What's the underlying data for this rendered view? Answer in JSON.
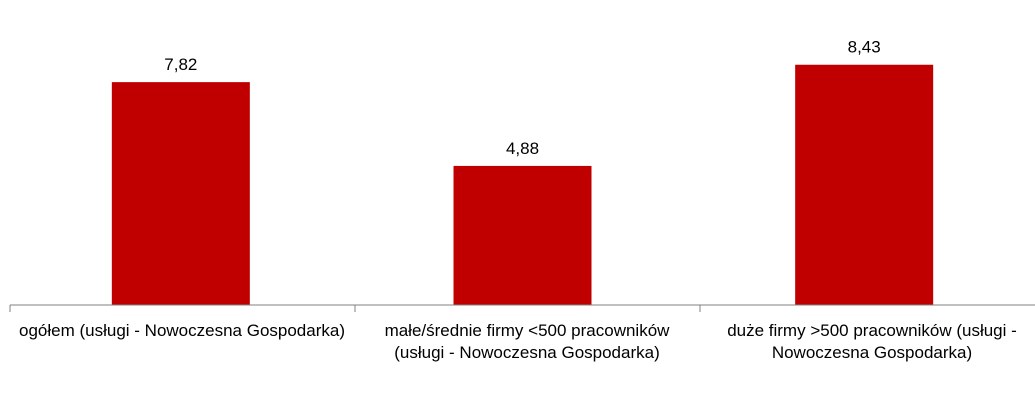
{
  "chart_data": {
    "type": "bar",
    "categories": [
      "ogółem (usługi - Nowoczesna Gospodarka)",
      "małe/średnie firmy <500 pracowników (usługi - Nowoczesna Gospodarka)",
      "duże firmy >500 pracowników (usługi - Nowoczesna Gospodarka)"
    ],
    "values": [
      7.82,
      4.88,
      8.43
    ],
    "data_labels": [
      "7,82",
      "4,88",
      "8,43"
    ],
    "ylim": [
      0,
      10
    ],
    "bar_color": "#c00000",
    "axis_color": "#808080",
    "grid": false,
    "legend": "none"
  }
}
